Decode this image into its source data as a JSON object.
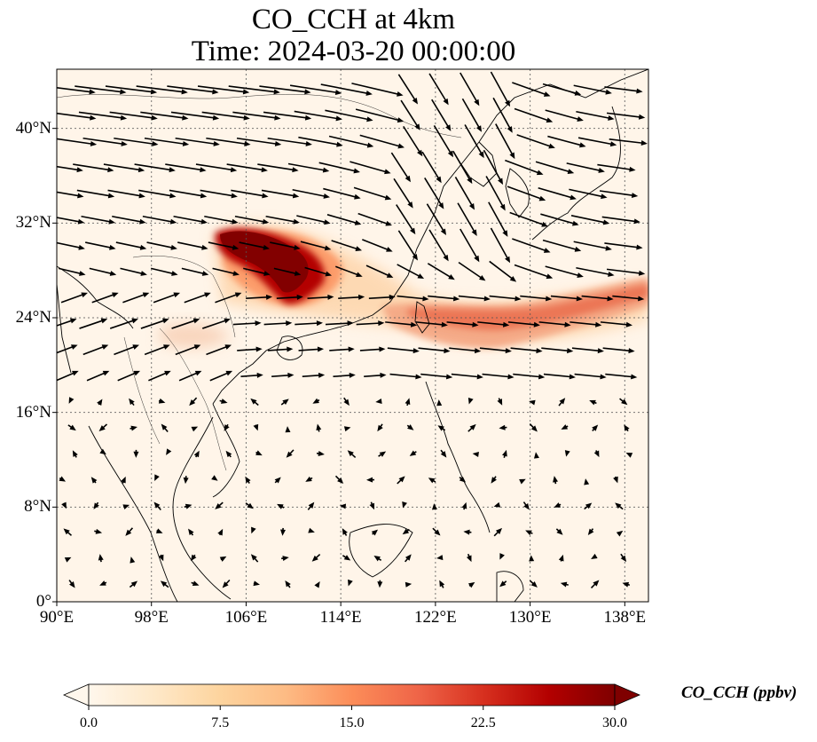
{
  "title": {
    "line1": "CO_CCH at 4km",
    "line2": "Time: 2024-03-20 00:00:00"
  },
  "map": {
    "lon_range": [
      90,
      140
    ],
    "lat_range": [
      0,
      45
    ],
    "lat_ticks": [
      {
        "value": 0,
        "label": "0°"
      },
      {
        "value": 8,
        "label": "8°N"
      },
      {
        "value": 16,
        "label": "16°N"
      },
      {
        "value": 24,
        "label": "24°N"
      },
      {
        "value": 32,
        "label": "32°N"
      },
      {
        "value": 40,
        "label": "40°N"
      }
    ],
    "lon_ticks": [
      {
        "value": 90,
        "label": "90°E"
      },
      {
        "value": 98,
        "label": "98°E"
      },
      {
        "value": 106,
        "label": "106°E"
      },
      {
        "value": 114,
        "label": "114°E"
      },
      {
        "value": 122,
        "label": "122°E"
      },
      {
        "value": 130,
        "label": "130°E"
      },
      {
        "value": 138,
        "label": "138°E"
      }
    ],
    "gridlines": true,
    "wind_vectors": true
  },
  "colorbar": {
    "label": "CO_CCH (ppbv)",
    "colormap": "OrRd",
    "range": [
      0,
      30
    ],
    "ticks": [
      {
        "value": 0,
        "label": "0.0"
      },
      {
        "value": 7.5,
        "label": "7.5"
      },
      {
        "value": 15,
        "label": "15.0"
      },
      {
        "value": 22.5,
        "label": "22.5"
      },
      {
        "value": 30,
        "label": "30.0"
      }
    ],
    "extend": "both",
    "colors": [
      "#fff7ec",
      "#fee8c8",
      "#fdd49e",
      "#fdbb84",
      "#fc8d59",
      "#ef6548",
      "#d7301f",
      "#b30000",
      "#7f0000"
    ]
  },
  "plumes": [
    {
      "name": "sichuan-basin-plume",
      "lon": 108.6,
      "lat": 29.0,
      "value": 30
    },
    {
      "name": "east-china-sea-plume",
      "lon": 124.0,
      "lat": 24.6,
      "value": 16
    },
    {
      "name": "western-pacific-plume",
      "lon": 136.0,
      "lat": 25.2,
      "value": 14
    }
  ]
}
